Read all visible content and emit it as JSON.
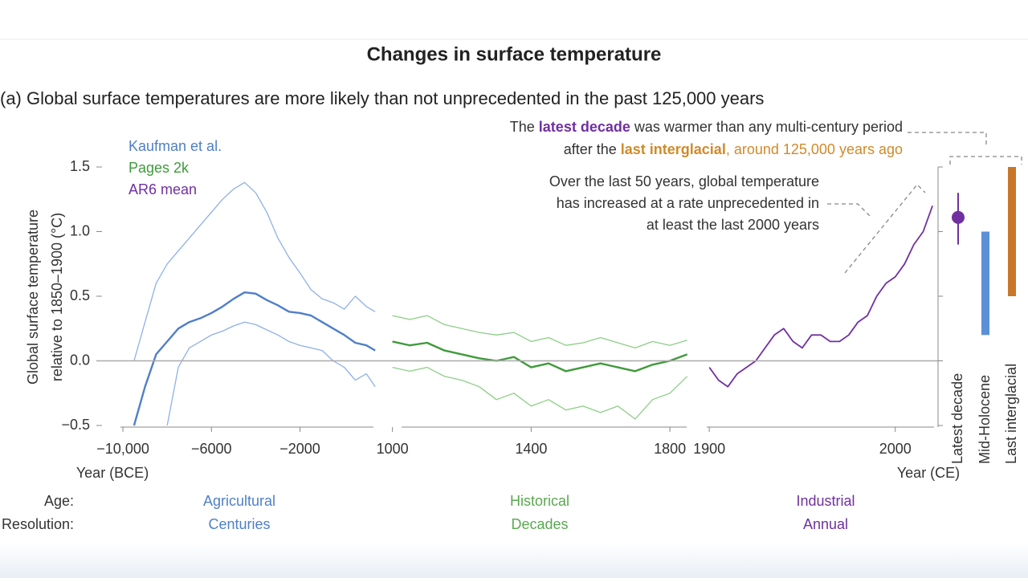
{
  "title": "Changes in surface temperature",
  "subtitle": "(a) Global surface temperatures are more likely than not unprecedented in the past 125,000 years",
  "annotations": [
    {
      "lines": [
        [
          "The ",
          "latest decade",
          " was warmer than any multi-century period"
        ],
        [
          "after the ",
          "last interglacial",
          ", around 125,000 years ago"
        ]
      ]
    },
    {
      "lines": [
        "Over the last 50 years, global temperature",
        "has increased at a rate unprecedented in",
        "at least the last 2000 years"
      ]
    }
  ],
  "footer": {
    "labels": [
      "Age:",
      "Resolution:"
    ],
    "columns": [
      [
        "Agricultural",
        "Centuries"
      ],
      [
        "Historical",
        "Decades"
      ],
      [
        "Industrial",
        "Annual"
      ]
    ]
  },
  "chart_data": [
    {
      "type": "line",
      "ylabel": [
        "Global surface temperature",
        "relative to 1850–1900 (°C)"
      ],
      "ylim": [
        -0.5,
        1.5
      ],
      "yticks": [
        {
          "value": -0.5,
          "label": "−0.5"
        },
        {
          "value": 0,
          "label": "0.0"
        },
        0.5,
        {
          "value": 1,
          "label": "1.0"
        },
        1.5
      ],
      "xlabel": "Year (BCE)",
      "xlim": [
        -11200,
        1500
      ],
      "xticks": [
        {
          "value": -10000,
          "label": "−10,000"
        },
        {
          "value": -6000,
          "label": "−6000"
        },
        {
          "value": -2000,
          "label": "−2000"
        }
      ],
      "x": [
        -9500,
        -9000,
        -8500,
        -8000,
        -7500,
        -7000,
        -6500,
        -6000,
        -5500,
        -5000,
        -4500,
        -4000,
        -3500,
        -3000,
        -2500,
        -2000,
        -1500,
        -1000,
        -500,
        0,
        500,
        1000,
        1400
      ],
      "series": [
        {
          "name": "Kaufman et al.",
          "color": "#4f7fc8",
          "band_color": "#8fb0e8",
          "values": [
            -0.5,
            -0.2,
            0.05,
            0.15,
            0.25,
            0.3,
            0.33,
            0.37,
            0.42,
            0.48,
            0.53,
            0.52,
            0.47,
            0.43,
            0.38,
            0.37,
            0.35,
            0.3,
            0.25,
            0.2,
            0.14,
            0.12,
            0.08
          ],
          "upper": [
            0.0,
            0.3,
            0.6,
            0.75,
            0.85,
            0.95,
            1.05,
            1.15,
            1.25,
            1.33,
            1.38,
            1.3,
            1.15,
            0.95,
            0.8,
            0.68,
            0.55,
            0.48,
            0.45,
            0.4,
            0.5,
            0.42,
            0.38
          ],
          "lower": [
            null,
            null,
            null,
            -0.5,
            -0.05,
            0.1,
            0.15,
            0.2,
            0.23,
            0.27,
            0.3,
            0.28,
            0.24,
            0.2,
            0.15,
            0.12,
            0.1,
            0.08,
            0.0,
            -0.05,
            -0.15,
            -0.1,
            -0.2
          ]
        }
      ]
    },
    {
      "type": "line",
      "xlim": [
        980,
        1860
      ],
      "xticks": [
        1000,
        1400,
        1800
      ],
      "x": [
        1000,
        1050,
        1100,
        1150,
        1200,
        1250,
        1300,
        1350,
        1400,
        1450,
        1500,
        1550,
        1600,
        1650,
        1700,
        1750,
        1800,
        1850
      ],
      "series": [
        {
          "name": "Pages 2k",
          "color": "#3f9a3a",
          "band_color": "#8ccf85",
          "values": [
            0.15,
            0.12,
            0.14,
            0.08,
            0.05,
            0.02,
            0.0,
            0.03,
            -0.05,
            -0.02,
            -0.08,
            -0.05,
            -0.02,
            -0.05,
            -0.08,
            -0.03,
            0.0,
            0.05
          ],
          "upper": [
            0.35,
            0.32,
            0.35,
            0.28,
            0.25,
            0.22,
            0.2,
            0.22,
            0.15,
            0.18,
            0.12,
            0.14,
            0.18,
            0.14,
            0.1,
            0.15,
            0.12,
            0.16
          ],
          "lower": [
            -0.05,
            -0.08,
            -0.05,
            -0.12,
            -0.15,
            -0.2,
            -0.3,
            -0.25,
            -0.35,
            -0.3,
            -0.38,
            -0.35,
            -0.4,
            -0.35,
            -0.45,
            -0.3,
            -0.25,
            -0.12
          ]
        }
      ]
    },
    {
      "type": "line",
      "xlabel": "Year (CE)",
      "xlim": [
        1890,
        2023
      ],
      "xticks": [
        1900,
        2000
      ],
      "x": [
        1900,
        1905,
        1910,
        1915,
        1920,
        1925,
        1930,
        1935,
        1940,
        1945,
        1950,
        1955,
        1960,
        1965,
        1970,
        1975,
        1980,
        1985,
        1990,
        1995,
        2000,
        2005,
        2010,
        2015,
        2020
      ],
      "series": [
        {
          "name": "AR6 mean",
          "color": "#7030a0",
          "values": [
            -0.05,
            -0.15,
            -0.2,
            -0.1,
            -0.05,
            0.0,
            0.1,
            0.2,
            0.25,
            0.15,
            0.1,
            0.2,
            0.2,
            0.15,
            0.15,
            0.2,
            0.3,
            0.35,
            0.5,
            0.6,
            0.65,
            0.75,
            0.9,
            1.0,
            1.2
          ]
        }
      ]
    },
    {
      "type": "range",
      "categories": [
        "Latest decade",
        "Mid-Holocene",
        "Last interglacial"
      ],
      "values": [
        1.11,
        null,
        null
      ],
      "low": [
        0.9,
        0.2,
        0.5
      ],
      "high": [
        1.3,
        1.0,
        1.5
      ],
      "colors": [
        "#7030a0",
        "#5b8fd6",
        "#c8772a"
      ]
    }
  ]
}
